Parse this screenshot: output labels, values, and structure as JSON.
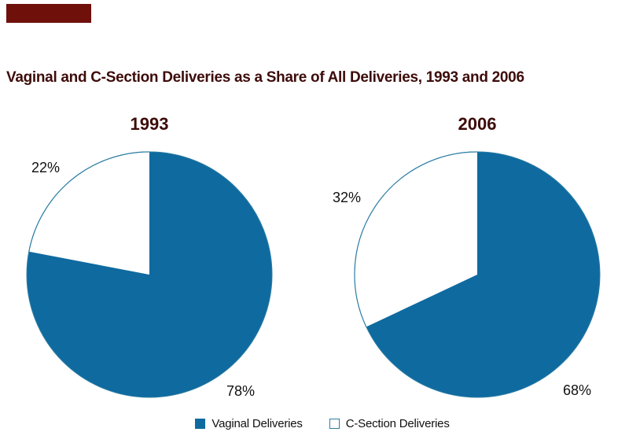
{
  "title": "Vaginal and C-Section Deliveries as a Share of All Deliveries, 1993 and 2006",
  "colors": {
    "page-bg": "#ffffff",
    "header-bar-red": "#70100B",
    "heading-maroon": "#3D0C0A",
    "pie-blue": "#0F6A9F",
    "pie-outline": "#2E7EA4",
    "label-black": "#111111"
  },
  "chart_data": [
    {
      "type": "pie",
      "title": "1993",
      "series": [
        {
          "name": "Vaginal Deliveries",
          "value": 78,
          "label": "78%",
          "color": "#0F6A9F"
        },
        {
          "name": "C-Section Deliveries",
          "value": 22,
          "label": "22%",
          "color": "#ffffff"
        }
      ],
      "start_angle_deg": 0,
      "note": "Blue vaginal slice starts at 12 o'clock sweeping clockwise; white C-section wedge occupies upper-left",
      "legend_position": "bottom"
    },
    {
      "type": "pie",
      "title": "2006",
      "series": [
        {
          "name": "Vaginal Deliveries",
          "value": 68,
          "label": "68%",
          "color": "#0F6A9F"
        },
        {
          "name": "C-Section Deliveries",
          "value": 32,
          "label": "32%",
          "color": "#ffffff"
        }
      ],
      "start_angle_deg": 0,
      "note": "Blue vaginal slice starts at 12 o'clock sweeping clockwise; white C-section wedge occupies upper-left",
      "legend_position": "bottom"
    }
  ],
  "legend": {
    "items": [
      {
        "label": "Vaginal Deliveries",
        "swatch": "filled-blue-square"
      },
      {
        "label": "C-Section Deliveries",
        "swatch": "open-square-blue-border"
      }
    ]
  }
}
